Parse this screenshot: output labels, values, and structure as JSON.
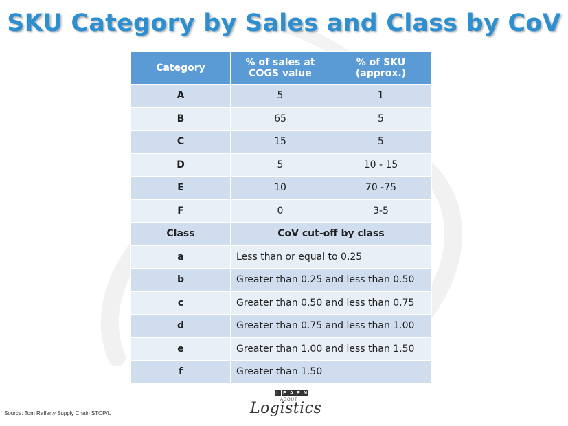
{
  "title": "SKU Category by Sales and Class by CoV",
  "table": {
    "headers": [
      "Category",
      "% of sales at COGS value",
      "% of SKU (approx.)"
    ],
    "category_rows": [
      {
        "category": "A",
        "sales_pct": "5",
        "sku_pct": "1"
      },
      {
        "category": "B",
        "sales_pct": "65",
        "sku_pct": "5"
      },
      {
        "category": "C",
        "sales_pct": "15",
        "sku_pct": "5"
      },
      {
        "category": "D",
        "sales_pct": "5",
        "sku_pct": "10 - 15"
      },
      {
        "category": "E",
        "sales_pct": "10",
        "sku_pct": "70 -75"
      },
      {
        "category": "F",
        "sales_pct": "0",
        "sku_pct": "3-5"
      }
    ],
    "class_header": {
      "label": "Class",
      "cutoff": "CoV cut-off by class"
    },
    "class_rows": [
      {
        "class": "a",
        "cutoff": "Less than or equal to 0.25"
      },
      {
        "class": "b",
        "cutoff": "Greater than 0.25 and less than 0.50"
      },
      {
        "class": "c",
        "cutoff": "Greater than 0.50 and less than 0.75"
      },
      {
        "class": "d",
        "cutoff": "Greater than 0.75 and less than 1.00"
      },
      {
        "class": "e",
        "cutoff": "Greater than 1.00 and less than 1.50"
      },
      {
        "class": "f",
        "cutoff": "Greater than 1.50"
      }
    ]
  },
  "source": "Source: Tom Rafferty Supply Chain STOP/L",
  "logo": {
    "letters": [
      "L",
      "E",
      "A",
      "R",
      "N"
    ],
    "about": "ABOUT",
    "text": "Logistics"
  },
  "colors": {
    "title": "#2e8fd0",
    "header_bg": "#5b9bd5",
    "row_dark": "#cfddee",
    "row_light": "#e9eff7"
  }
}
